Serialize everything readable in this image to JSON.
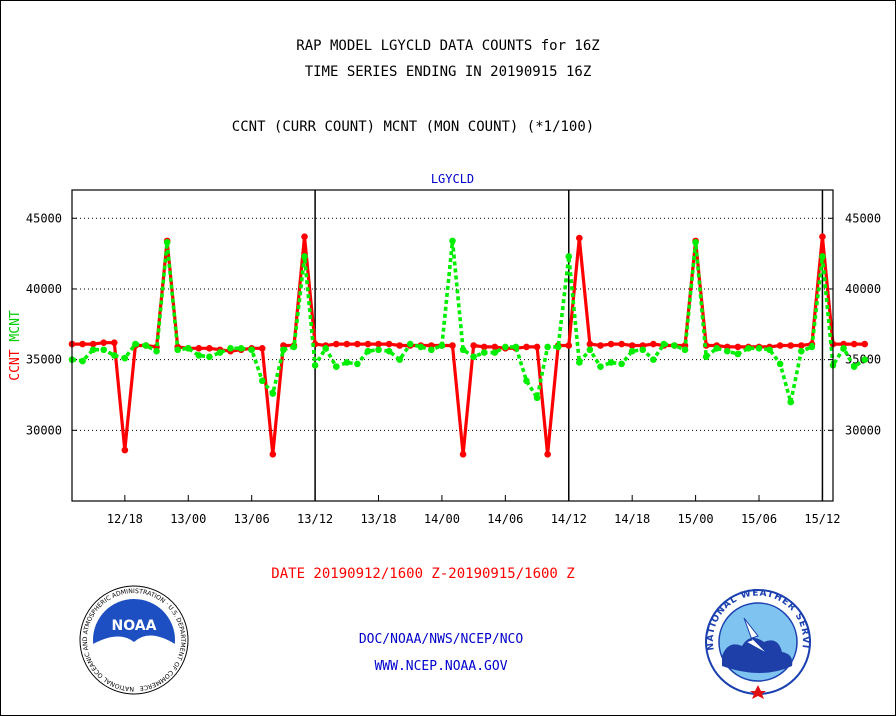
{
  "header": {
    "title_line1": "RAP MODEL LGYCLD DATA COUNTS for 16Z",
    "title_line2": "TIME SERIES ENDING IN 20190915 16Z",
    "subtitle": "CCNT (CURR COUNT) MCNT (MON COUNT) (*1/100)"
  },
  "footer": {
    "date_range": "DATE 20190912/1600 Z-20190915/1600 Z",
    "credit_line1": "DOC/NOAA/NWS/NCEP/NCO",
    "credit_line2": "WWW.NCEP.NOAA.GOV"
  },
  "logos": {
    "noaa_text": "NOAA",
    "noaa_ring_text": "NATIONAL OCEANIC AND ATMOSPHERIC ADMINISTRATION · U.S. DEPARTMENT OF COMMERCE",
    "nws_ring_text": "NATIONAL WEATHER SERVICE"
  },
  "colors": {
    "ccnt": "#ff0000",
    "mcnt": "#00ee00",
    "label_blue": "#0000cc"
  },
  "chart_data": {
    "type": "line",
    "title": "LGYCLD",
    "ylabel_parts": [
      {
        "text": "CCNT",
        "color": "#ff0000"
      },
      {
        "text": "MCNT",
        "color": "#00cc00"
      }
    ],
    "ylim": [
      25000,
      47000
    ],
    "yticks": [
      30000,
      35000,
      40000,
      45000
    ],
    "ytick_labels": [
      "30000",
      "35000",
      "40000",
      "45000"
    ],
    "xlim": [
      -3,
      69
    ],
    "xticks": [
      {
        "x": 2,
        "label": "12/18"
      },
      {
        "x": 8,
        "label": "13/00"
      },
      {
        "x": 14,
        "label": "13/06"
      },
      {
        "x": 20,
        "label": "13/12"
      },
      {
        "x": 26,
        "label": "13/18"
      },
      {
        "x": 32,
        "label": "14/00"
      },
      {
        "x": 38,
        "label": "14/06"
      },
      {
        "x": 44,
        "label": "14/12"
      },
      {
        "x": 50,
        "label": "14/18"
      },
      {
        "x": 56,
        "label": "15/00"
      },
      {
        "x": 62,
        "label": "15/06"
      },
      {
        "x": 68,
        "label": "15/12"
      }
    ],
    "day_separators": [
      20,
      44,
      68
    ],
    "grid": "horizontal dotted",
    "series": [
      {
        "name": "CCNT",
        "color": "#ff0000",
        "style": "solid",
        "values": [
          36100,
          36100,
          36100,
          36200,
          36200,
          28600,
          36000,
          36000,
          35900,
          43400,
          35900,
          35800,
          35800,
          35800,
          35700,
          35600,
          35700,
          35800,
          35800,
          28300,
          36000,
          36000,
          43700,
          36100,
          36000,
          36100,
          36100,
          36100,
          36100,
          36100,
          36100,
          36000,
          36000,
          36000,
          36000,
          36000,
          36000,
          28300,
          36000,
          35900,
          35900,
          35800,
          35800,
          35900,
          35900,
          28300,
          36000,
          36000,
          43600,
          36100,
          36000,
          36100,
          36100,
          36000,
          36000,
          36100,
          36000,
          36000,
          36000,
          43400,
          36000,
          36000,
          35900,
          35900,
          35900,
          35900,
          35900,
          36000,
          36000,
          36000,
          36100,
          43700,
          36100,
          36100,
          36100,
          36100
        ],
        "x_start": -3
      },
      {
        "name": "MCNT",
        "color": "#00ee00",
        "style": "dotted",
        "values": [
          35000,
          34900,
          35700,
          35700,
          35300,
          35100,
          36100,
          36000,
          35600,
          43300,
          35700,
          35800,
          35300,
          35200,
          35500,
          35800,
          35800,
          35700,
          33500,
          32600,
          35700,
          35900,
          42300,
          34600,
          35800,
          34500,
          34800,
          34700,
          35600,
          35700,
          35600,
          35000,
          36100,
          35900,
          35700,
          36000,
          43400,
          35700,
          35200,
          35500,
          35500,
          35900,
          35900,
          33500,
          32300,
          35900,
          35900,
          42300,
          34800,
          35700,
          34500,
          34800,
          34700,
          35600,
          35700,
          35000,
          36100,
          36000,
          35700,
          43300,
          35200,
          35800,
          35600,
          35400,
          35800,
          35800,
          35700,
          34700,
          32000,
          35600,
          35900,
          42300,
          34600,
          35800,
          34500,
          35000
        ],
        "x_start": -3
      }
    ]
  }
}
